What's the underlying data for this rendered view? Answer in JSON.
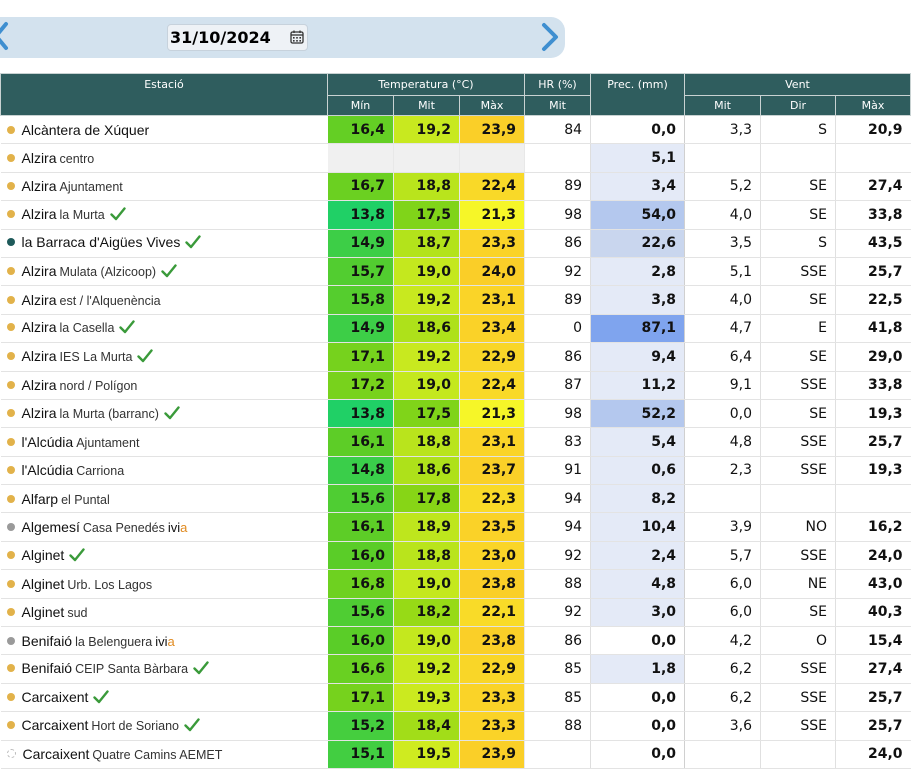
{
  "date": "31/10/2024",
  "colors": {
    "header": "#2f5d5e",
    "datebar": "#d3e2ee",
    "nav_arrow": "#3f8fd0"
  },
  "headers": {
    "station": "Estació",
    "temperature": "Temperatura (°C)",
    "humidity": "HR (%)",
    "precip": "Prec. (mm)",
    "wind": "Vent",
    "t_min": "Mín",
    "t_mid": "Mit",
    "t_max": "Màx",
    "hr_mid": "Mit",
    "w_mid": "Mit",
    "w_dir": "Dir",
    "w_max": "Màx"
  },
  "rows": [
    {
      "name": "Alcàntera de Xúquer",
      "sub": "",
      "dot": "orange",
      "check": false,
      "ivia": false,
      "tmin": "16,4",
      "tmid": "19,2",
      "tmax": "23,9",
      "hr": "84",
      "prec": "0,0",
      "wmid": "3,3",
      "wdir": "S",
      "wmax": "20,9"
    },
    {
      "name": "Alzira",
      "sub": "centro",
      "dot": "orange",
      "check": false,
      "ivia": false,
      "tmin": "",
      "tmid": "",
      "tmax": "",
      "hr": "",
      "prec": "5,1",
      "wmid": "",
      "wdir": "",
      "wmax": ""
    },
    {
      "name": "Alzira",
      "sub": "Ajuntament",
      "dot": "orange",
      "check": false,
      "ivia": false,
      "tmin": "16,7",
      "tmid": "18,8",
      "tmax": "22,4",
      "hr": "89",
      "prec": "3,4",
      "wmid": "5,2",
      "wdir": "SE",
      "wmax": "27,4"
    },
    {
      "name": "Alzira",
      "sub": "la Murta",
      "dot": "orange",
      "check": true,
      "ivia": false,
      "tmin": "13,8",
      "tmid": "17,5",
      "tmax": "21,3",
      "hr": "98",
      "prec": "54,0",
      "wmid": "4,0",
      "wdir": "SE",
      "wmax": "33,8"
    },
    {
      "name": "la Barraca d'Aigües Vives",
      "sub": "",
      "dot": "teal",
      "check": true,
      "ivia": false,
      "tmin": "14,9",
      "tmid": "18,7",
      "tmax": "23,3",
      "hr": "86",
      "prec": "22,6",
      "wmid": "3,5",
      "wdir": "S",
      "wmax": "43,5"
    },
    {
      "name": "Alzira",
      "sub": "Mulata (Alzicoop)",
      "dot": "orange",
      "check": true,
      "ivia": false,
      "tmin": "15,7",
      "tmid": "19,0",
      "tmax": "24,0",
      "hr": "92",
      "prec": "2,8",
      "wmid": "5,1",
      "wdir": "SSE",
      "wmax": "25,7"
    },
    {
      "name": "Alzira",
      "sub": "est / l'Alquenència",
      "dot": "orange",
      "check": false,
      "ivia": false,
      "tmin": "15,8",
      "tmid": "19,2",
      "tmax": "23,1",
      "hr": "89",
      "prec": "3,8",
      "wmid": "4,0",
      "wdir": "SE",
      "wmax": "22,5"
    },
    {
      "name": "Alzira",
      "sub": "la Casella",
      "dot": "orange",
      "check": true,
      "ivia": false,
      "tmin": "14,9",
      "tmid": "18,6",
      "tmax": "23,4",
      "hr": "0",
      "prec": "87,1",
      "wmid": "4,7",
      "wdir": "E",
      "wmax": "41,8"
    },
    {
      "name": "Alzira",
      "sub": "IES La Murta",
      "dot": "orange",
      "check": true,
      "ivia": false,
      "tmin": "17,1",
      "tmid": "19,2",
      "tmax": "22,9",
      "hr": "86",
      "prec": "9,4",
      "wmid": "6,4",
      "wdir": "SE",
      "wmax": "29,0"
    },
    {
      "name": "Alzira",
      "sub": "nord / Polígon",
      "dot": "orange",
      "check": false,
      "ivia": false,
      "tmin": "17,2",
      "tmid": "19,0",
      "tmax": "22,4",
      "hr": "87",
      "prec": "11,2",
      "wmid": "9,1",
      "wdir": "SSE",
      "wmax": "33,8"
    },
    {
      "name": "Alzira",
      "sub": "la Murta (barranc)",
      "dot": "orange",
      "check": true,
      "ivia": false,
      "tmin": "13,8",
      "tmid": "17,5",
      "tmax": "21,3",
      "hr": "98",
      "prec": "52,2",
      "wmid": "0,0",
      "wdir": "SE",
      "wmax": "19,3"
    },
    {
      "name": "l'Alcúdia",
      "sub": "Ajuntament",
      "dot": "orange",
      "check": false,
      "ivia": false,
      "tmin": "16,1",
      "tmid": "18,8",
      "tmax": "23,1",
      "hr": "83",
      "prec": "5,4",
      "wmid": "4,8",
      "wdir": "SSE",
      "wmax": "25,7"
    },
    {
      "name": "l'Alcúdia",
      "sub": "Carriona",
      "dot": "orange",
      "check": false,
      "ivia": false,
      "tmin": "14,8",
      "tmid": "18,6",
      "tmax": "23,7",
      "hr": "91",
      "prec": "0,6",
      "wmid": "2,3",
      "wdir": "SSE",
      "wmax": "19,3"
    },
    {
      "name": "Alfarp",
      "sub": "el Puntal",
      "dot": "orange",
      "check": false,
      "ivia": false,
      "tmin": "15,6",
      "tmid": "17,8",
      "tmax": "22,3",
      "hr": "94",
      "prec": "8,2",
      "wmid": "",
      "wdir": "",
      "wmax": ""
    },
    {
      "name": "Algemesí",
      "sub": "Casa Penedés",
      "dot": "gray",
      "check": false,
      "ivia": true,
      "tmin": "16,1",
      "tmid": "18,9",
      "tmax": "23,5",
      "hr": "94",
      "prec": "10,4",
      "wmid": "3,9",
      "wdir": "NO",
      "wmax": "16,2"
    },
    {
      "name": "Alginet",
      "sub": "",
      "dot": "orange",
      "check": true,
      "ivia": false,
      "tmin": "16,0",
      "tmid": "18,8",
      "tmax": "23,0",
      "hr": "92",
      "prec": "2,4",
      "wmid": "5,7",
      "wdir": "SSE",
      "wmax": "24,0"
    },
    {
      "name": "Alginet",
      "sub": "Urb. Los Lagos",
      "dot": "orange",
      "check": false,
      "ivia": false,
      "tmin": "16,8",
      "tmid": "19,0",
      "tmax": "23,8",
      "hr": "88",
      "prec": "4,8",
      "wmid": "6,0",
      "wdir": "NE",
      "wmax": "43,0"
    },
    {
      "name": "Alginet",
      "sub": "sud",
      "dot": "orange",
      "check": false,
      "ivia": false,
      "tmin": "15,6",
      "tmid": "18,2",
      "tmax": "22,1",
      "hr": "92",
      "prec": "3,0",
      "wmid": "6,0",
      "wdir": "SE",
      "wmax": "40,3"
    },
    {
      "name": "Benifaió",
      "sub": "la Belenguera",
      "dot": "gray",
      "check": false,
      "ivia": true,
      "tmin": "16,0",
      "tmid": "19,0",
      "tmax": "23,8",
      "hr": "86",
      "prec": "0,0",
      "wmid": "4,2",
      "wdir": "O",
      "wmax": "15,4"
    },
    {
      "name": "Benifaió",
      "sub": "CEIP Santa Bàrbara",
      "dot": "orange",
      "check": true,
      "ivia": false,
      "tmin": "16,6",
      "tmid": "19,2",
      "tmax": "22,9",
      "hr": "85",
      "prec": "1,8",
      "wmid": "6,2",
      "wdir": "SSE",
      "wmax": "27,4"
    },
    {
      "name": "Carcaixent",
      "sub": "",
      "dot": "orange",
      "check": true,
      "ivia": false,
      "tmin": "17,1",
      "tmid": "19,3",
      "tmax": "23,3",
      "hr": "85",
      "prec": "0,0",
      "wmid": "6,2",
      "wdir": "SSE",
      "wmax": "25,7"
    },
    {
      "name": "Carcaixent",
      "sub": "Hort de Soriano",
      "dot": "orange",
      "check": true,
      "ivia": false,
      "tmin": "15,2",
      "tmid": "18,4",
      "tmax": "23,3",
      "hr": "88",
      "prec": "0,0",
      "wmid": "3,6",
      "wdir": "SSE",
      "wmax": "25,7"
    },
    {
      "name": "Carcaixent",
      "sub": "Quatre Camins AEMET",
      "dot": "hollow",
      "check": false,
      "ivia": false,
      "tmin": "15,1",
      "tmid": "19,5",
      "tmax": "23,9",
      "hr": "",
      "prec": "0,0",
      "wmid": "",
      "wdir": "",
      "wmax": "24,0"
    }
  ],
  "ivia_label": {
    "main": "ivi",
    "accent": "a"
  }
}
